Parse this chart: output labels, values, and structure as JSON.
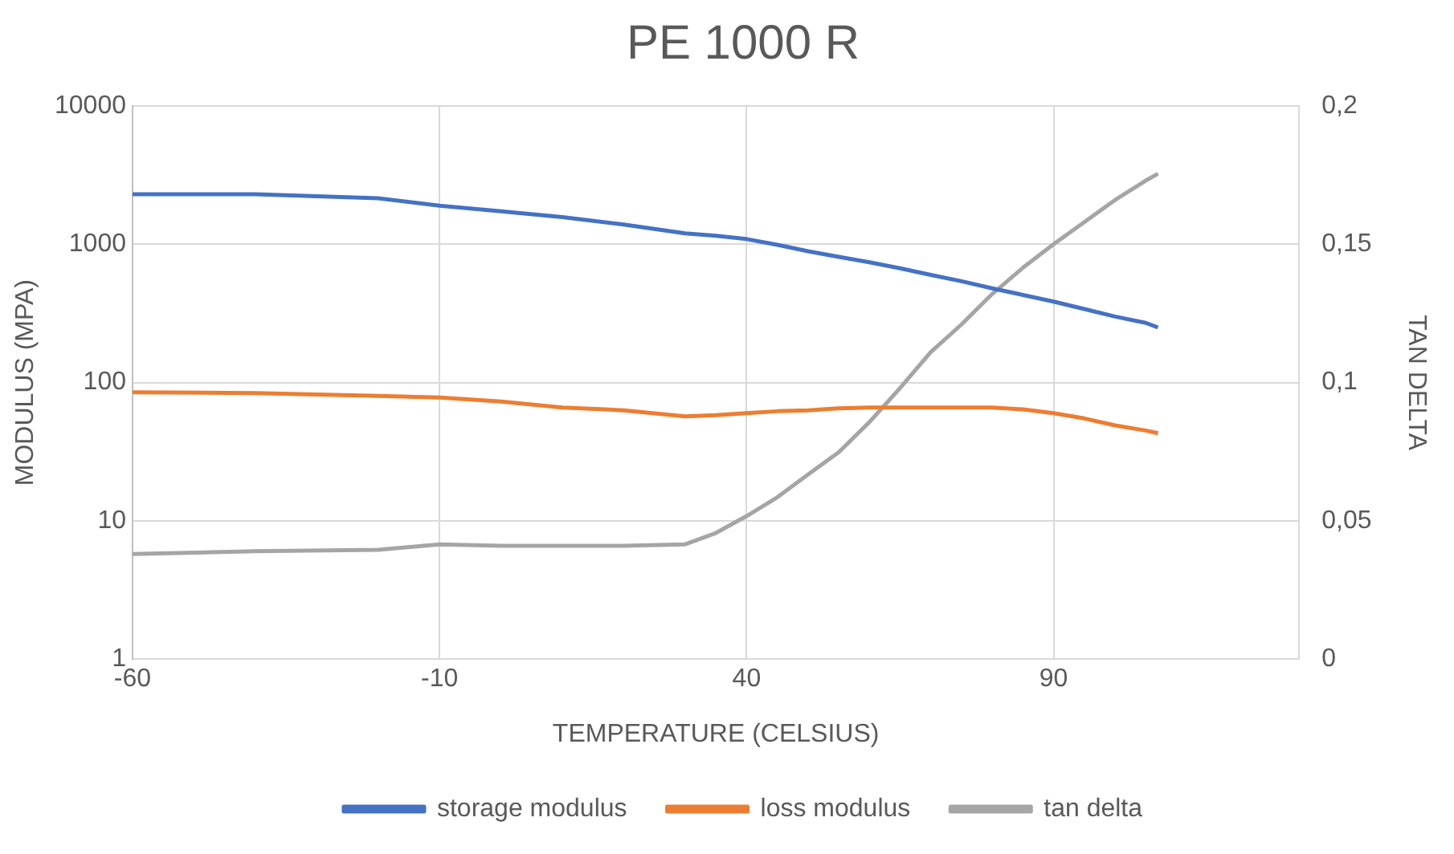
{
  "chart_data": {
    "type": "line",
    "title": "PE 1000 R",
    "xlabel": "TEMPERATURE (CELSIUS)",
    "ylabel": "MODULUS (MPA)",
    "y2label": "TAN DELTA",
    "x": [
      -60,
      -40,
      -20,
      -10,
      0,
      10,
      20,
      30,
      35,
      40,
      45,
      50,
      55,
      60,
      65,
      70,
      75,
      80,
      85,
      90,
      95,
      100,
      105,
      107
    ],
    "series": [
      {
        "name": "storage modulus",
        "color": "#4472c4",
        "values": [
          2300,
          2300,
          2150,
          1900,
          1730,
          1570,
          1390,
          1200,
          1150,
          1090,
          990,
          890,
          810,
          740,
          670,
          600,
          540,
          480,
          430,
          385,
          340,
          300,
          270,
          250
        ]
      },
      {
        "name": "loss modulus",
        "color": "#ed7d31",
        "values": [
          85,
          84,
          80,
          78,
          73,
          66,
          63,
          57,
          58,
          60,
          62,
          63,
          65,
          66,
          66,
          66,
          66,
          66,
          64,
          60,
          55,
          49,
          45,
          43
        ]
      },
      {
        "name": "tan delta",
        "color": "#a5a5a5",
        "axis": "y2",
        "values": [
          0.038,
          0.039,
          0.0395,
          0.0415,
          0.041,
          0.041,
          0.041,
          0.0415,
          0.0456,
          0.0517,
          0.0585,
          0.0667,
          0.0748,
          0.0857,
          0.098,
          0.111,
          0.121,
          0.132,
          0.1415,
          0.15,
          0.158,
          0.166,
          0.173,
          0.1755
        ]
      }
    ],
    "log": "y",
    "xlim": [
      -60,
      130
    ],
    "xticks": [
      -60,
      -10,
      40,
      90
    ],
    "ylim": [
      1,
      10000
    ],
    "yticks": [
      1,
      10,
      100,
      1000,
      10000
    ],
    "y2lim": [
      0,
      0.2
    ],
    "y2ticks": [
      0,
      {
        "value": 0.05,
        "label": "0,05"
      },
      {
        "value": 0.1,
        "label": "0,1"
      },
      {
        "value": 0.15,
        "label": "0,15"
      },
      {
        "value": 0.2,
        "label": "0,2"
      }
    ],
    "grid": true,
    "legend": "bottom",
    "marker": "none",
    "line_style": "solid"
  }
}
